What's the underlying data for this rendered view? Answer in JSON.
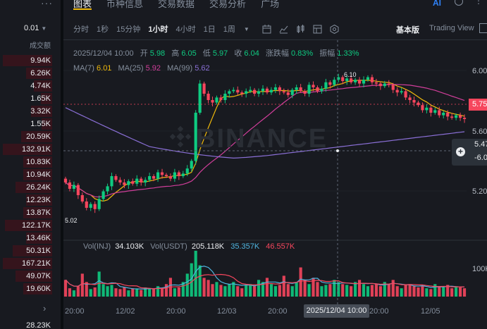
{
  "orderbook": {
    "precision": "0.01",
    "column_header": "成交额",
    "values": [
      "9.94K",
      "6.26K",
      "4.74K",
      "1.65K",
      "3.32K",
      "1.55K",
      "20.59K",
      "132.91K",
      "10.83K",
      "10.94K",
      "26.24K",
      "12.23K",
      "13.87K",
      "122.17K",
      "13.46K",
      "50.31K",
      "167.21K",
      "49.07K",
      "19.60K"
    ],
    "bar_fractions": [
      0.95,
      0.5,
      0.35,
      0.22,
      0.4,
      0.2,
      0.6,
      0.95,
      0.55,
      0.55,
      0.7,
      0.5,
      0.55,
      0.9,
      0.5,
      0.75,
      0.95,
      0.7,
      0.55
    ],
    "last_value": "28.23K"
  },
  "tabs": [
    "图表",
    "币种信息",
    "交易数据",
    "交易分析",
    "广场"
  ],
  "top_icons": {
    "ai": "AI",
    "help": "help-icon",
    "more": "more-icon"
  },
  "intervals": [
    "分时",
    "1秒",
    "15分钟",
    "1小时",
    "4小时",
    "1日",
    "1周"
  ],
  "active_interval": "1小时",
  "toolbar_icons": [
    "calendar-icon",
    "indicator-icon",
    "candle-type-icon",
    "template-icon",
    "settings-icon"
  ],
  "views": {
    "basic": "基本版",
    "tradingview": "Trading View"
  },
  "ohlc": {
    "date": "2025/12/04 10:00",
    "open_label": "开",
    "open": "5.98",
    "high_label": "高",
    "high": "6.05",
    "low_label": "低",
    "low": "5.97",
    "close_label": "收",
    "close": "6.04",
    "change_label": "涨跌幅",
    "change": "0.83%",
    "amp_label": "振幅",
    "amp": "1.33%"
  },
  "ma": {
    "ma7_label": "MA(7)",
    "ma7": "6.01",
    "ma7_color": "#f0b90b",
    "ma25_label": "MA(25)",
    "ma25": "5.92",
    "ma25_color": "#d03e9a",
    "ma99_label": "MA(99)",
    "ma99": "5.62",
    "ma99_color": "#8a6fd6"
  },
  "vol": {
    "label1": "Vol(INJ)",
    "v1": "34.103K",
    "label2": "Vol(USDT)",
    "v2": "205.118K",
    "v3": "35.357K",
    "v3_color": "#4fb5e0",
    "v4": "46.557K",
    "v4_color": "#f6465d"
  },
  "price_axis": [
    "6.00",
    "5.60",
    "5.20"
  ],
  "vol_axis": "100K",
  "last_price": "5.75",
  "cross_price": "5.47",
  "cross_change": "-6.0",
  "high_marker": "6.10",
  "low_marker": "5.02",
  "time_labels": [
    "20:00",
    "12/02",
    "20:00",
    "12/03",
    "20:00",
    "20:00",
    "12/05"
  ],
  "crosshair_time": "2025/12/04 10:00",
  "watermark": "BINANCE",
  "colors": {
    "up": "#0ecb81",
    "down": "#f6465d",
    "accent": "#f0b90b"
  },
  "chart_data": {
    "type": "candlestick",
    "interval": "1小时",
    "y_range": [
      4.9,
      6.25
    ],
    "closes": [
      5.25,
      5.2,
      5.23,
      5.15,
      5.1,
      5.05,
      5.08,
      5.04,
      5.12,
      5.18,
      5.22,
      5.3,
      5.27,
      5.25,
      5.23,
      5.26,
      5.24,
      5.28,
      5.25,
      5.27,
      5.3,
      5.28,
      5.33,
      5.31,
      5.3,
      5.28,
      5.33,
      5.3,
      5.32,
      5.36,
      5.42,
      5.8,
      6.03,
      5.95,
      5.9,
      5.88,
      5.92,
      5.9,
      5.95,
      5.97,
      5.98,
      5.96,
      5.95,
      5.97,
      5.98,
      5.95,
      5.97,
      5.99,
      5.96,
      5.98,
      6.0,
      5.97,
      5.96,
      5.94,
      5.98,
      6.0,
      5.97,
      5.95,
      6.02,
      6.0,
      5.97,
      5.99,
      6.04,
      6.02,
      6.06,
      6.08,
      6.05,
      6.07,
      6.04,
      6.06,
      6.03,
      6.06,
      6.08,
      6.04,
      6.03,
      6.01,
      6.03,
      6.02,
      5.98,
      5.96,
      5.97,
      5.92,
      5.9,
      5.88,
      5.86,
      5.82,
      5.84,
      5.8,
      5.82,
      5.78,
      5.8,
      5.77,
      5.76,
      5.78,
      5.76,
      5.75
    ],
    "volume": [
      40,
      20,
      15,
      25,
      55,
      35,
      18,
      22,
      60,
      30,
      25,
      28,
      20,
      18,
      22,
      15,
      20,
      18,
      16,
      22,
      20,
      18,
      25,
      20,
      30,
      45,
      20,
      22,
      35,
      55,
      80,
      110,
      75,
      45,
      40,
      30,
      35,
      28,
      25,
      30,
      35,
      25,
      20,
      28,
      30,
      25,
      40,
      35,
      45,
      30,
      25,
      28,
      50,
      30,
      25,
      35,
      70,
      40,
      30,
      45,
      35,
      25,
      28,
      30,
      40,
      35,
      30,
      28,
      25,
      35,
      40,
      30,
      25,
      28,
      30,
      25,
      35,
      30,
      40,
      25,
      20,
      28,
      30,
      25,
      22,
      25,
      20,
      18,
      30,
      25,
      22,
      28,
      20,
      25,
      22,
      20
    ],
    "ma_values": {
      "MA(7)": "6.01",
      "MA(25)": "5.92",
      "MA(99)": "5.62"
    }
  }
}
